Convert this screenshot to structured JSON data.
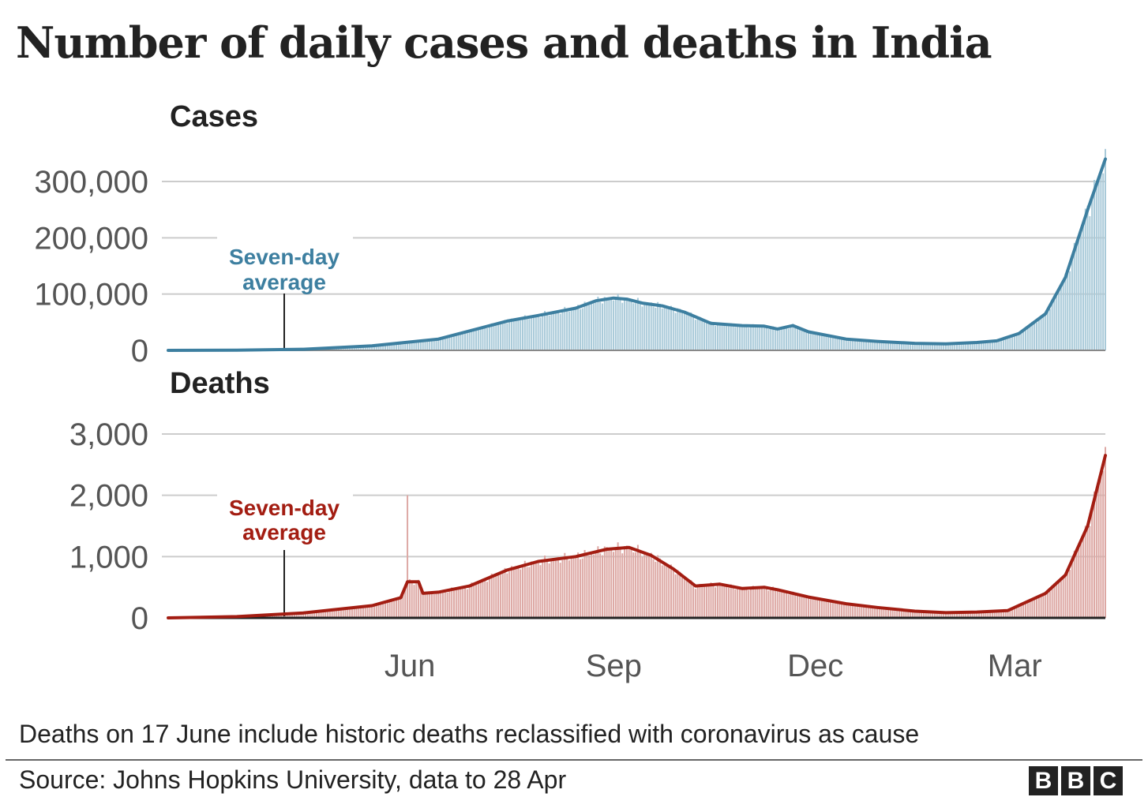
{
  "title": "Number of daily cases and deaths in India",
  "note": "Deaths on 17 June include historic deaths reclassified with coronavirus as cause",
  "source": "Source: Johns Hopkins University, data to 28 Apr",
  "logo": [
    "B",
    "B",
    "C"
  ],
  "colors": {
    "cases_line": "#3d7fa0",
    "cases_bars": "#a9cad9",
    "deaths_line": "#a31d12",
    "deaths_bars": "#dda8a4",
    "grid": "#cccccc",
    "baseline": "#222222"
  },
  "chart_data": [
    {
      "type": "bar",
      "title": "Cases",
      "annotation": "Seven-day average",
      "x_ticks": [
        "Jun",
        "Sep",
        "Dec",
        "Mar"
      ],
      "x_tick_dates": [
        "2020-06-01",
        "2020-09-01",
        "2020-12-01",
        "2021-03-01"
      ],
      "x_range": [
        "2020-03-01",
        "2021-04-28"
      ],
      "ylim": [
        0,
        360000
      ],
      "y_ticks": [
        0,
        100000,
        200000,
        300000
      ],
      "y_tick_labels": [
        "0",
        "100,000",
        "200,000",
        "300,000"
      ],
      "grid": true,
      "series": [
        {
          "name": "Seven-day average",
          "points": [
            [
              "2020-03-01",
              0
            ],
            [
              "2020-04-01",
              300
            ],
            [
              "2020-05-01",
              2000
            ],
            [
              "2020-06-01",
              8000
            ],
            [
              "2020-07-01",
              20000
            ],
            [
              "2020-08-01",
              52000
            ],
            [
              "2020-08-15",
              62000
            ],
            [
              "2020-09-01",
              75000
            ],
            [
              "2020-09-10",
              88000
            ],
            [
              "2020-09-18",
              93000
            ],
            [
              "2020-09-24",
              91000
            ],
            [
              "2020-10-01",
              84000
            ],
            [
              "2020-10-10",
              79000
            ],
            [
              "2020-10-20",
              68000
            ],
            [
              "2020-11-01",
              48000
            ],
            [
              "2020-11-15",
              44000
            ],
            [
              "2020-11-25",
              43000
            ],
            [
              "2020-12-01",
              38000
            ],
            [
              "2020-12-08",
              44000
            ],
            [
              "2020-12-15",
              33000
            ],
            [
              "2021-01-01",
              20000
            ],
            [
              "2021-01-15",
              16000
            ],
            [
              "2021-02-01",
              12500
            ],
            [
              "2021-02-15",
              11500
            ],
            [
              "2021-03-01",
              14000
            ],
            [
              "2021-03-10",
              17000
            ],
            [
              "2021-03-20",
              30000
            ],
            [
              "2021-04-01",
              65000
            ],
            [
              "2021-04-10",
              130000
            ],
            [
              "2021-04-20",
              250000
            ],
            [
              "2021-04-28",
              340000
            ]
          ]
        }
      ]
    },
    {
      "type": "bar",
      "title": "Deaths",
      "annotation": "Seven-day average",
      "x_ticks": [
        "Jun",
        "Sep",
        "Dec",
        "Mar"
      ],
      "x_tick_dates": [
        "2020-06-01",
        "2020-09-01",
        "2020-12-01",
        "2021-03-01"
      ],
      "x_range": [
        "2020-03-01",
        "2021-04-28"
      ],
      "ylim": [
        0,
        3300
      ],
      "y_ticks": [
        0,
        1000,
        2000,
        3000
      ],
      "y_tick_labels": [
        "0",
        "1,000",
        "2,000",
        "3,000"
      ],
      "grid": true,
      "spike": {
        "date": "2020-06-17",
        "value": 2000
      },
      "series": [
        {
          "name": "Seven-day average",
          "points": [
            [
              "2020-03-01",
              0
            ],
            [
              "2020-04-01",
              20
            ],
            [
              "2020-05-01",
              80
            ],
            [
              "2020-06-01",
              200
            ],
            [
              "2020-06-14",
              330
            ],
            [
              "2020-06-17",
              590
            ],
            [
              "2020-06-22",
              590
            ],
            [
              "2020-06-24",
              400
            ],
            [
              "2020-07-01",
              420
            ],
            [
              "2020-07-15",
              520
            ],
            [
              "2020-08-01",
              780
            ],
            [
              "2020-08-15",
              920
            ],
            [
              "2020-09-01",
              1000
            ],
            [
              "2020-09-15",
              1120
            ],
            [
              "2020-09-25",
              1150
            ],
            [
              "2020-10-05",
              1020
            ],
            [
              "2020-10-15",
              800
            ],
            [
              "2020-10-25",
              520
            ],
            [
              "2020-11-05",
              550
            ],
            [
              "2020-11-15",
              480
            ],
            [
              "2020-11-25",
              500
            ],
            [
              "2020-12-01",
              460
            ],
            [
              "2020-12-15",
              340
            ],
            [
              "2021-01-01",
              230
            ],
            [
              "2021-01-15",
              170
            ],
            [
              "2021-02-01",
              110
            ],
            [
              "2021-02-15",
              85
            ],
            [
              "2021-03-01",
              95
            ],
            [
              "2021-03-15",
              120
            ],
            [
              "2021-04-01",
              400
            ],
            [
              "2021-04-10",
              700
            ],
            [
              "2021-04-20",
              1500
            ],
            [
              "2021-04-28",
              2650
            ]
          ]
        }
      ]
    }
  ]
}
